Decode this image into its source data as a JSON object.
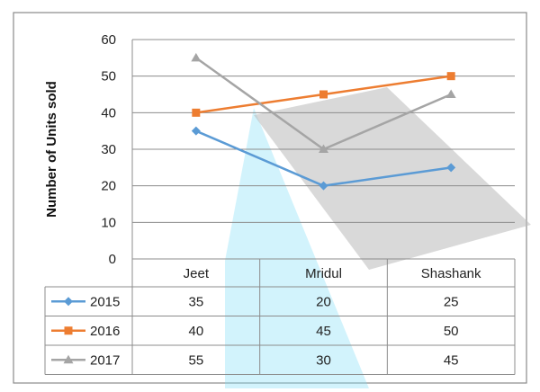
{
  "chart_data": {
    "type": "line",
    "ylabel": "Number of Units sold",
    "xlabel": "",
    "categories": [
      "Jeet",
      "Mridul",
      "Shashank"
    ],
    "ylim": [
      0,
      60
    ],
    "yticks": [
      "0",
      "10",
      "20",
      "30",
      "40",
      "50",
      "60"
    ],
    "grid": true,
    "legend": "data-table",
    "series": [
      {
        "name": "2015",
        "values": [
          35,
          20,
          25
        ],
        "color": "#5B9BD5",
        "marker": "diamond"
      },
      {
        "name": "2016",
        "values": [
          40,
          45,
          50
        ],
        "color": "#ED7D31",
        "marker": "square"
      },
      {
        "name": "2017",
        "values": [
          55,
          30,
          45
        ],
        "color": "#A5A5A5",
        "marker": "triangle"
      }
    ]
  }
}
